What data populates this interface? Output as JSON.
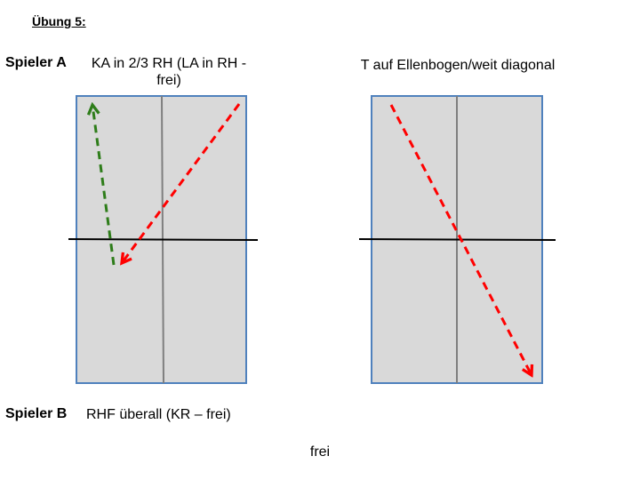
{
  "title": "Übung 5:",
  "spieler_a": {
    "label": "Spieler A",
    "drill_1": "KA in 2/3 RH (LA in RH - frei)",
    "drill_2": "T auf Ellenbogen/weit diagonal"
  },
  "spieler_b": {
    "label": "Spieler B",
    "description": "RHF überall (KR – frei)"
  },
  "bottom_note": "frei",
  "colors": {
    "table_fill": "#d9d9d9",
    "table_border": "#4f81bd",
    "center_line": "#7f7f7f",
    "net": "#000000",
    "arrow_red": "#ff0000",
    "arrow_green": "#2e7d1a"
  }
}
